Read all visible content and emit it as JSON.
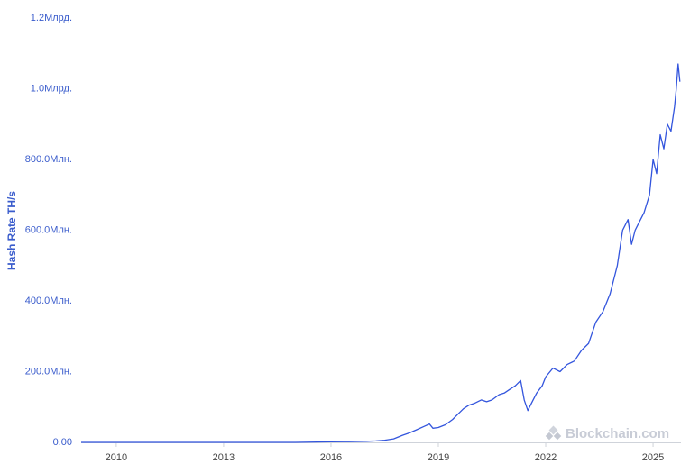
{
  "chart_data": {
    "type": "line",
    "y_label": "Hash Rate TH/s",
    "watermark": "Blockchain.com",
    "color": "#3355dd",
    "x": [
      2009.02,
      2010,
      2011,
      2012,
      2013,
      2014,
      2015,
      2016,
      2016.5,
      2017,
      2017.25,
      2017.5,
      2017.75,
      2018,
      2018.2,
      2018.4,
      2018.6,
      2018.75,
      2018.85,
      2019,
      2019.2,
      2019.4,
      2019.55,
      2019.7,
      2019.85,
      2020,
      2020.2,
      2020.35,
      2020.5,
      2020.7,
      2020.85,
      2021,
      2021.15,
      2021.3,
      2021.4,
      2021.5,
      2021.6,
      2021.75,
      2021.9,
      2022,
      2022.2,
      2022.4,
      2022.6,
      2022.8,
      2023,
      2023.2,
      2023.4,
      2023.6,
      2023.8,
      2024,
      2024.15,
      2024.3,
      2024.4,
      2024.5,
      2024.6,
      2024.75,
      2024.9,
      2025,
      2025.1,
      2025.2,
      2025.3,
      2025.4,
      2025.5,
      2025.6,
      2025.65,
      2025.7,
      2025.75
    ],
    "values": [
      0,
      0,
      0,
      0,
      0,
      0,
      0,
      1500000,
      2000000,
      3000000,
      4000000,
      6000000,
      10000000,
      20000000,
      27000000,
      36000000,
      45000000,
      52000000,
      40000000,
      42000000,
      50000000,
      65000000,
      80000000,
      95000000,
      105000000,
      110000000,
      120000000,
      115000000,
      120000000,
      135000000,
      140000000,
      150000000,
      160000000,
      175000000,
      120000000,
      90000000,
      110000000,
      140000000,
      160000000,
      185000000,
      210000000,
      200000000,
      220000000,
      230000000,
      260000000,
      280000000,
      340000000,
      370000000,
      420000000,
      500000000,
      600000000,
      630000000,
      560000000,
      600000000,
      620000000,
      650000000,
      700000000,
      800000000,
      760000000,
      870000000,
      830000000,
      900000000,
      880000000,
      950000000,
      1000000000,
      1070000000,
      1020000000
    ],
    "xlim": [
      2009.02,
      2025.78
    ],
    "xticks": [
      2010,
      2013,
      2016,
      2019,
      2022,
      2025
    ],
    "ylim": [
      0,
      1200000000
    ],
    "yticks": [
      {
        "value": 0,
        "label": "0.00"
      },
      {
        "value": 200000000,
        "label": "200.0Млн."
      },
      {
        "value": 400000000,
        "label": "400.0Млн."
      },
      {
        "value": 600000000,
        "label": "600.0Млн."
      },
      {
        "value": 800000000,
        "label": "800.0Млн."
      },
      {
        "value": 1000000000,
        "label": "1.0Млрд."
      },
      {
        "value": 1200000000,
        "label": "1.2Млрд."
      }
    ]
  }
}
